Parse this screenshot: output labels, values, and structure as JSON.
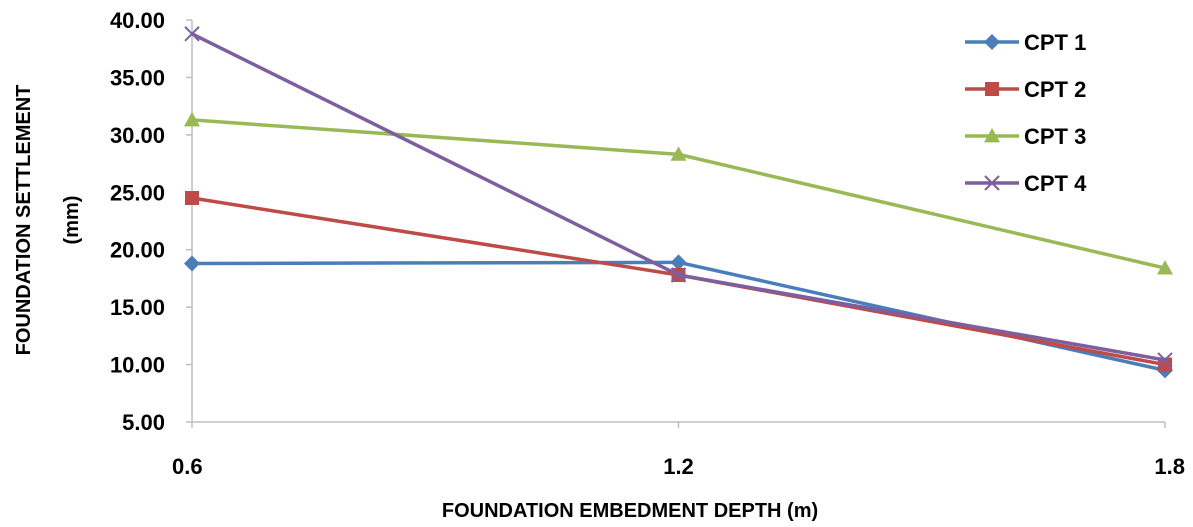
{
  "chart_data": {
    "type": "line",
    "x": [
      0.6,
      1.2,
      1.8
    ],
    "x_tick_labels": [
      "0.6",
      "1.2",
      "1.8"
    ],
    "xlabel": "FOUNDATION EMBEDMENT DEPTH (m)",
    "ylabel_lines": [
      "FOUNDATION SETTLEMENT",
      "(mm)"
    ],
    "ylim": [
      5,
      40
    ],
    "y_ticks": [
      5,
      10,
      15,
      20,
      25,
      30,
      35,
      40
    ],
    "y_tick_labels": [
      "5.00",
      "10.00",
      "15.00",
      "20.00",
      "25.00",
      "30.00",
      "35.00",
      "40.00"
    ],
    "grid": false,
    "legend_position": "top-right",
    "series": [
      {
        "name": "CPT 1",
        "values": [
          18.8,
          18.9,
          9.5
        ],
        "color": "#4A7EBB",
        "marker": "diamond"
      },
      {
        "name": "CPT 2",
        "values": [
          24.5,
          17.8,
          10.0
        ],
        "color": "#BE4B48",
        "marker": "square"
      },
      {
        "name": "CPT 3",
        "values": [
          31.3,
          28.3,
          18.4
        ],
        "color": "#98B954",
        "marker": "triangle"
      },
      {
        "name": "CPT 4",
        "values": [
          38.8,
          17.8,
          10.4
        ],
        "color": "#7D5FA0",
        "marker": "x"
      }
    ]
  }
}
